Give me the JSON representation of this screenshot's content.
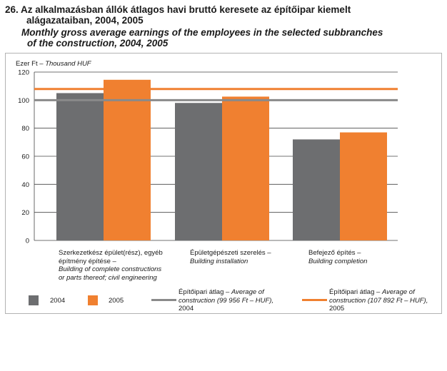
{
  "title": {
    "hu_line1": "26. Az alkalmazásban állók átlagos havi bruttó keresete az építőipar kiemelt",
    "hu_line2": "alágazataiban, 2004, 2005",
    "en_line1": "Monthly gross average earnings of the employees in the selected subbranches",
    "en_line2": "of the construction, 2004, 2005"
  },
  "unit_hu": "Ezer Ft – ",
  "unit_en": "Thousand HUF",
  "categories": [
    {
      "hu": "Szerkezetkész épület(rész), egyéb építmény építése –",
      "en": "Building of complete constructions or parts thereof; civil engineering"
    },
    {
      "hu": "Épületgépészeti szerelés –",
      "en": "Building installation"
    },
    {
      "hu": "Befejező építés –",
      "en": "Building completion"
    }
  ],
  "legend": {
    "y2004": "2004",
    "y2005": "2005",
    "avg2004_hu": "Építőipari átlag – ",
    "avg2004_en": "Average of construction (99 956 Ft – HUF),",
    "avg2004_year": "2004",
    "avg2005_hu": "Építőipari átlag – ",
    "avg2005_en": "Average of construction (107 892 Ft – HUF),",
    "avg2005_year": "2005"
  },
  "colors": {
    "bar2004": "#6d6e70",
    "bar2005": "#f08030",
    "avg2004": "#8a8a8a",
    "avg2005": "#f08030",
    "grid": "#444444"
  },
  "chart_data": {
    "type": "bar",
    "categories": [
      "Szerkezetkész épület(rész), egyéb építmény építése",
      "Épületgépészeti szerelés",
      "Befejező építés"
    ],
    "series": [
      {
        "name": "2004",
        "values": [
          105,
          98,
          72
        ]
      },
      {
        "name": "2005",
        "values": [
          114.5,
          102.5,
          77
        ]
      }
    ],
    "reference_lines": [
      {
        "name": "Építőipari átlag 2004",
        "value": 99.956
      },
      {
        "name": "Építőipari átlag 2005",
        "value": 107.892
      }
    ],
    "yticks": [
      0,
      20,
      40,
      60,
      80,
      100,
      120
    ],
    "ylim": [
      0,
      120
    ],
    "ylabel": "Ezer Ft – Thousand HUF",
    "grid": true,
    "legend_position": "bottom"
  }
}
